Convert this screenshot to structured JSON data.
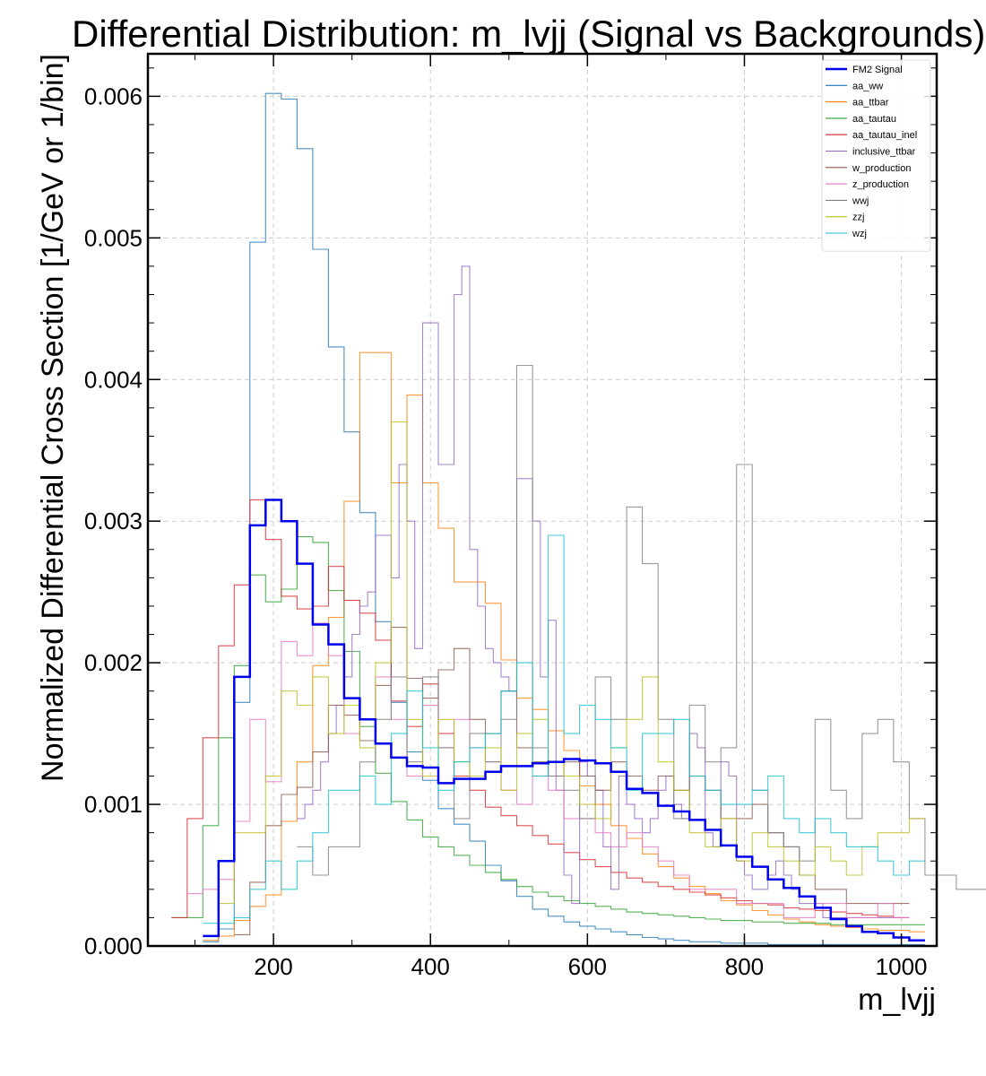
{
  "chart_data": {
    "type": "line",
    "title": "Differential Distribution: m_lvjj (Signal vs Backgrounds)",
    "xlabel": "m_lvjj",
    "ylabel": "Normalized Differential Cross Section [1/GeV or 1/bin]",
    "xlim": [
      40,
      1045
    ],
    "ylim": [
      0,
      0.0063
    ],
    "xticks": [
      200,
      400,
      600,
      800,
      1000
    ],
    "xtick_labels": [
      "200",
      "400",
      "600",
      "800",
      "1000"
    ],
    "yticks": [
      0,
      0.001,
      0.002,
      0.003,
      0.004,
      0.005,
      0.006
    ],
    "ytick_labels": [
      "0.000",
      "0.001",
      "0.002",
      "0.003",
      "0.004",
      "0.005",
      "0.006"
    ],
    "grid": true,
    "legend_position": "top-right",
    "series": [
      {
        "name": "FM2 Signal",
        "color": "#0000ee",
        "width": 2.5,
        "x_start": 110,
        "bin_width": 20,
        "values": [
          7e-05,
          0.0006,
          0.0019,
          0.00297,
          0.00315,
          0.003,
          0.0027,
          0.00227,
          0.00213,
          0.00175,
          0.0016,
          0.00143,
          0.00133,
          0.00127,
          0.00126,
          0.00115,
          0.00118,
          0.00118,
          0.00123,
          0.00127,
          0.00127,
          0.00129,
          0.0013,
          0.00132,
          0.00131,
          0.00129,
          0.00123,
          0.00111,
          0.00108,
          0.00099,
          0.00095,
          0.00089,
          0.00082,
          0.00071,
          0.00063,
          0.00056,
          0.00047,
          0.00041,
          0.00035,
          0.00027,
          0.00019,
          0.00014,
          0.0001,
          9e-05,
          6e-05,
          4e-05
        ]
      },
      {
        "name": "aa_ww",
        "color": "#1f77b4",
        "width": 1.1,
        "x_start": 110,
        "bin_width": 20,
        "values": [
          3e-05,
          0.00012,
          0.00172,
          0.00497,
          0.00602,
          0.00598,
          0.00563,
          0.00492,
          0.00423,
          0.00363,
          0.00306,
          0.00229,
          0.00172,
          0.00137,
          0.00117,
          0.00097,
          0.00086,
          0.00074,
          0.00057,
          0.00046,
          0.00035,
          0.00026,
          0.00021,
          0.00017,
          0.00014,
          0.00012,
          0.0001,
          8e-05,
          6e-05,
          5e-05,
          4e-05,
          3e-05,
          3e-05,
          2e-05,
          2e-05,
          2e-05,
          1e-05,
          1e-05,
          1e-05,
          1e-05,
          1e-05,
          1e-05,
          1e-05,
          1e-05,
          1e-05,
          1e-05
        ]
      },
      {
        "name": "aa_ttbar",
        "color": "#ff7f0e",
        "width": 1.1,
        "x_start": 110,
        "bin_width": 20,
        "values": [
          4e-05,
          7e-05,
          0.00018,
          0.00028,
          0.00036,
          0.00088,
          0.0013,
          0.00198,
          0.00232,
          0.00314,
          0.00419,
          0.00419,
          0.00327,
          0.00389,
          0.00327,
          0.00295,
          0.00257,
          0.00257,
          0.00242,
          0.00202,
          0.00175,
          0.00167,
          0.00152,
          0.00138,
          0.00113,
          0.001,
          0.00085,
          0.00076,
          0.00065,
          0.00056,
          0.00048,
          0.00042,
          0.00037,
          0.00032,
          0.00029,
          0.00025,
          0.00022,
          0.00019,
          0.00017,
          0.00015,
          0.00014,
          0.00013,
          0.00012,
          0.00011,
          0.00011,
          0.0001
        ]
      },
      {
        "name": "aa_tautau",
        "color": "#2ca02c",
        "width": 1.1,
        "x_start": 70,
        "bin_width": 20,
        "values": [
          0.0002,
          0.0002,
          0.00085,
          0.00147,
          0.00198,
          0.00262,
          0.00243,
          0.00252,
          0.00289,
          0.00285,
          0.00251,
          0.00208,
          0.00155,
          0.00122,
          0.00102,
          0.00089,
          0.00077,
          0.0007,
          0.00064,
          0.00057,
          0.00052,
          0.00047,
          0.00042,
          0.00038,
          0.00035,
          0.00032,
          0.0003,
          0.00028,
          0.00026,
          0.00024,
          0.00023,
          0.00022,
          0.00021,
          0.0002,
          0.00019,
          0.00018,
          0.00018,
          0.00017,
          0.00017,
          0.00016,
          0.00016,
          0.00016,
          0.00015,
          0.00015,
          0.00015,
          0.00015,
          0.00015,
          0.00015
        ]
      },
      {
        "name": "aa_tautau_inel",
        "color": "#d62728",
        "width": 1.1,
        "x_start": 70,
        "bin_width": 20,
        "values": [
          0.0002,
          0.0009,
          0.00147,
          0.00212,
          0.00255,
          0.00315,
          0.00287,
          0.00247,
          0.00238,
          0.0024,
          0.00268,
          0.00244,
          0.00235,
          0.00216,
          0.00173,
          0.00155,
          0.00185,
          0.0015,
          0.0012,
          0.0011,
          0.00098,
          0.00092,
          0.00085,
          0.00078,
          0.00072,
          0.00066,
          0.00061,
          0.00056,
          0.00052,
          0.00048,
          0.00045,
          0.00042,
          0.0004,
          0.00038,
          0.00036,
          0.00034,
          0.00032,
          0.0003,
          0.00029,
          0.00027,
          0.00026,
          0.00025,
          0.00024,
          0.00023,
          0.00022,
          0.00021,
          0.0002
        ]
      },
      {
        "name": "inclusive_ttbar",
        "color": "#9467bd",
        "width": 1.1,
        "x_start": 230,
        "bin_width": 10,
        "values": [
          0.0009,
          0.001,
          0.0011,
          0.0013,
          0.0015,
          0.0017,
          0.0019,
          0.0022,
          0.0024,
          0.0025,
          0.0029,
          0.0029,
          0.0026,
          0.0034,
          0.003,
          0.0021,
          0.0044,
          0.0044,
          0.0034,
          0.0034,
          0.0046,
          0.0048,
          0.0028,
          0.0024,
          0.0021,
          0.002,
          0.0019,
          0.0018,
          0.0033,
          0.0033,
          0.003,
          0.0019,
          0.0023,
          0.0011,
          0.0005,
          0.0003,
          0.0013,
          0.0012,
          0.0011,
          0.0007,
          0.0004,
          0.0012,
          0.001,
          0.0009,
          0.0008,
          0.0009,
          0.0011,
          0.0012,
          0.001,
          0.0009,
          0.0015,
          0.0014,
          0.0008,
          0.0007,
          0.0013,
          0.0012,
          0.0006,
          0.0005,
          0.0004,
          0.0004,
          0.0005,
          0.0006,
          0.0005,
          0.0004,
          0.0003,
          0.0003,
          0.0003,
          0.0002,
          0.0002,
          0.0002,
          0.0002,
          0.0002,
          0.0002,
          0.0002,
          0.0002,
          0.0002,
          0.0002
        ]
      },
      {
        "name": "w_production",
        "color": "#8c564b",
        "width": 1.1,
        "x_start": 150,
        "bin_width": 20,
        "values": [
          8e-05,
          0.00045,
          0.00085,
          0.00107,
          0.00112,
          0.00137,
          0.0017,
          0.00163,
          0.00145,
          0.00184,
          0.00225,
          0.00189,
          0.00175,
          0.00195,
          0.0021,
          0.0016,
          0.0015,
          0.0018,
          0.0014,
          0.0013,
          0.0012,
          0.0013,
          0.0012,
          0.0011,
          0.0013,
          0.0012,
          0.0011,
          0.0012,
          0.0011,
          0.0012,
          0.0011,
          0.0009,
          0.0009,
          0.001,
          0.0008,
          0.0007,
          0.0005,
          0.0004,
          0.0004,
          0.0003,
          0.0003,
          0.0003,
          0.0003
        ]
      },
      {
        "name": "z_production",
        "color": "#e377c2",
        "width": 1.1,
        "x_start": 90,
        "bin_width": 20,
        "values": [
          0.00037,
          0.0004,
          0.00047,
          0.00088,
          0.0016,
          0.00116,
          0.00215,
          0.00205,
          0.00228,
          0.00205,
          0.0015,
          0.0016,
          0.0019,
          0.0016,
          0.0012,
          0.0017,
          0.0014,
          0.0016,
          0.0014,
          0.0013,
          0.0011,
          0.001,
          0.0012,
          0.0011,
          0.0009,
          0.0009,
          0.0008,
          0.0007,
          0.0008,
          0.0007,
          0.0006,
          0.0005,
          0.0004,
          0.0004,
          0.0004,
          0.0003,
          0.0003,
          0.0003,
          0.0002,
          0.0002,
          0.0003,
          0.0003,
          0.0002,
          0.0002,
          0.0003,
          0.0002
        ]
      },
      {
        "name": "wwj",
        "color": "#7f7f7f",
        "width": 1.1,
        "x_start": 230,
        "bin_width": 20,
        "values": [
          0.0007,
          0.0005,
          0.0007,
          0.0007,
          0.0013,
          0.0016,
          0.0019,
          0.0013,
          0.0019,
          0.0014,
          0.0009,
          0.0015,
          0.0013,
          0.0016,
          0.0041,
          0.0014,
          0.0012,
          0.0011,
          0.0009,
          0.0019,
          0.0016,
          0.0031,
          0.0027,
          0.0016,
          0.0009,
          0.0017,
          0.0013,
          0.0014,
          0.0034,
          0.0011,
          0.0008,
          0.0007,
          0.0006,
          0.0016,
          0.0011,
          0.0009,
          0.0015,
          0.0016,
          0.0013,
          0.0009,
          0.0005,
          0.0005,
          0.0004,
          0.0004,
          0.0004,
          0.0004,
          0.0007,
          0.0007
        ]
      },
      {
        "name": "zzj",
        "color": "#bcbd22",
        "width": 1.1,
        "x_start": 130,
        "bin_width": 20,
        "values": [
          0.0003,
          0.0008,
          0.0008,
          0.0012,
          0.0018,
          0.0017,
          0.0019,
          0.0015,
          0.0017,
          0.0014,
          0.002,
          0.0037,
          0.0016,
          0.0012,
          0.0016,
          0.0013,
          0.0012,
          0.0014,
          0.0011,
          0.0015,
          0.0016,
          0.0013,
          0.0012,
          0.001,
          0.0009,
          0.0014,
          0.0016,
          0.0019,
          0.0013,
          0.0011,
          0.0008,
          0.0007,
          0.0009,
          0.0006,
          0.0008,
          0.0007,
          0.0006,
          0.0005,
          0.0007,
          0.0006,
          0.0005,
          0.0007,
          0.0008,
          0.0008,
          0.0009
        ]
      },
      {
        "name": "wzj",
        "color": "#17becf",
        "width": 1.1,
        "x_start": 110,
        "bin_width": 20,
        "values": [
          0.00016,
          0.00016,
          0.0002,
          0.0004,
          0.0006,
          0.0004,
          0.0006,
          0.0008,
          0.0011,
          0.0011,
          0.0012,
          0.001,
          0.0015,
          0.0018,
          0.0014,
          0.0011,
          0.0013,
          0.0014,
          0.0015,
          0.0018,
          0.002,
          0.0012,
          0.0029,
          0.0015,
          0.0017,
          0.0016,
          0.0014,
          0.0011,
          0.0015,
          0.0015,
          0.0016,
          0.0012,
          0.0011,
          0.001,
          0.001,
          0.0011,
          0.0012,
          0.0009,
          0.0008,
          0.0009,
          0.0008,
          0.0007,
          0.0007,
          0.0006,
          0.0005,
          0.0006
        ]
      }
    ]
  }
}
